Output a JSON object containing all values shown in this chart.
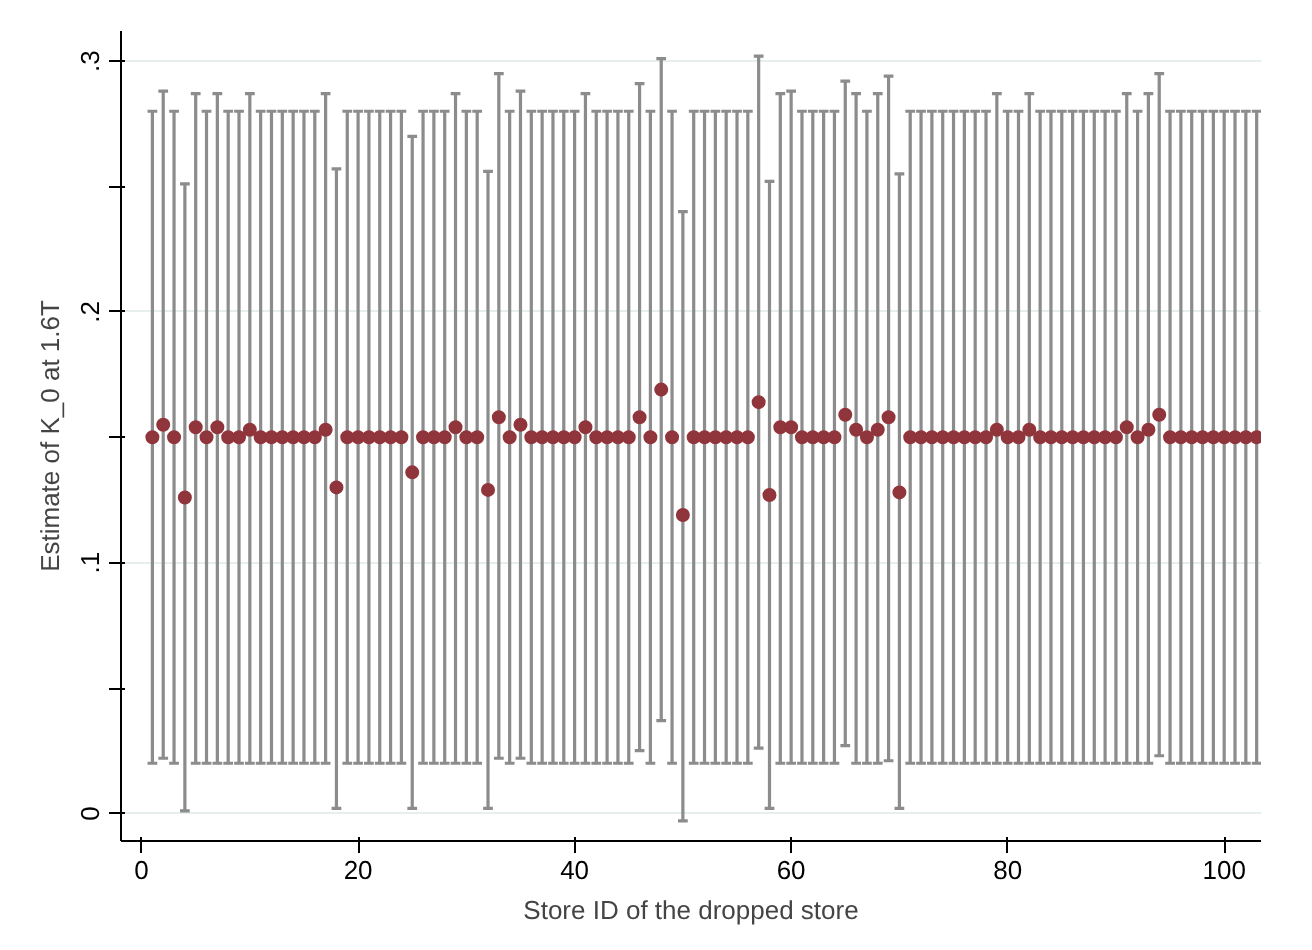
{
  "chart_data": {
    "type": "scatter",
    "xlabel": "Store ID of the dropped store",
    "ylabel": "Estimate of K_0 at 1.6T",
    "x": [
      1,
      2,
      3,
      4,
      5,
      6,
      7,
      8,
      9,
      10,
      11,
      12,
      13,
      14,
      15,
      16,
      17,
      18,
      19,
      20,
      21,
      22,
      23,
      24,
      25,
      26,
      27,
      28,
      29,
      30,
      31,
      32,
      33,
      34,
      35,
      36,
      37,
      38,
      39,
      40,
      41,
      42,
      43,
      44,
      45,
      46,
      47,
      48,
      49,
      50,
      51,
      52,
      53,
      54,
      55,
      56,
      57,
      58,
      59,
      60,
      61,
      62,
      63,
      64,
      65,
      66,
      67,
      68,
      69,
      70,
      71,
      72,
      73,
      74,
      75,
      76,
      77,
      78,
      79,
      80,
      81,
      82,
      83,
      84,
      85,
      86,
      87,
      88,
      89,
      90,
      91,
      92,
      93,
      94,
      95,
      96,
      97,
      98,
      99,
      100,
      101,
      102,
      103
    ],
    "series": [
      {
        "color": "#90353b",
        "values": [
          0.15,
          0.155,
          0.15,
          0.126,
          0.154,
          0.15,
          0.154,
          0.15,
          0.15,
          0.153,
          0.15,
          0.15,
          0.15,
          0.15,
          0.15,
          0.15,
          0.153,
          0.13,
          0.15,
          0.15,
          0.15,
          0.15,
          0.15,
          0.15,
          0.136,
          0.15,
          0.15,
          0.15,
          0.154,
          0.15,
          0.15,
          0.129,
          0.158,
          0.15,
          0.155,
          0.15,
          0.15,
          0.15,
          0.15,
          0.15,
          0.154,
          0.15,
          0.15,
          0.15,
          0.15,
          0.158,
          0.15,
          0.169,
          0.15,
          0.119,
          0.15,
          0.15,
          0.15,
          0.15,
          0.15,
          0.15,
          0.164,
          0.127,
          0.154,
          0.154,
          0.15,
          0.15,
          0.15,
          0.15,
          0.159,
          0.153,
          0.15,
          0.153,
          0.158,
          0.128,
          0.15,
          0.15,
          0.15,
          0.15,
          0.15,
          0.15,
          0.15,
          0.15,
          0.153,
          0.15,
          0.15,
          0.153,
          0.15,
          0.15,
          0.15,
          0.15,
          0.15,
          0.15,
          0.15,
          0.15,
          0.154,
          0.15,
          0.153,
          0.159,
          0.15,
          0.15,
          0.15,
          0.15,
          0.15,
          0.15,
          0.15,
          0.15,
          0.15
        ],
        "errors": [
          [
            0.02,
            0.28
          ],
          [
            0.022,
            0.288
          ],
          [
            0.02,
            0.28
          ],
          [
            0.001,
            0.251
          ],
          [
            0.02,
            0.287
          ],
          [
            0.02,
            0.28
          ],
          [
            0.02,
            0.287
          ],
          [
            0.02,
            0.28
          ],
          [
            0.02,
            0.28
          ],
          [
            0.02,
            0.287
          ],
          [
            0.02,
            0.28
          ],
          [
            0.02,
            0.28
          ],
          [
            0.02,
            0.28
          ],
          [
            0.02,
            0.28
          ],
          [
            0.02,
            0.28
          ],
          [
            0.02,
            0.28
          ],
          [
            0.02,
            0.287
          ],
          [
            0.002,
            0.257
          ],
          [
            0.02,
            0.28
          ],
          [
            0.02,
            0.28
          ],
          [
            0.02,
            0.28
          ],
          [
            0.02,
            0.28
          ],
          [
            0.02,
            0.28
          ],
          [
            0.02,
            0.28
          ],
          [
            0.002,
            0.27
          ],
          [
            0.02,
            0.28
          ],
          [
            0.02,
            0.28
          ],
          [
            0.02,
            0.28
          ],
          [
            0.02,
            0.287
          ],
          [
            0.02,
            0.28
          ],
          [
            0.02,
            0.28
          ],
          [
            0.002,
            0.256
          ],
          [
            0.022,
            0.295
          ],
          [
            0.02,
            0.28
          ],
          [
            0.022,
            0.288
          ],
          [
            0.02,
            0.28
          ],
          [
            0.02,
            0.28
          ],
          [
            0.02,
            0.28
          ],
          [
            0.02,
            0.28
          ],
          [
            0.02,
            0.28
          ],
          [
            0.02,
            0.287
          ],
          [
            0.02,
            0.28
          ],
          [
            0.02,
            0.28
          ],
          [
            0.02,
            0.28
          ],
          [
            0.02,
            0.28
          ],
          [
            0.025,
            0.291
          ],
          [
            0.02,
            0.28
          ],
          [
            0.037,
            0.301
          ],
          [
            0.02,
            0.28
          ],
          [
            -0.003,
            0.24
          ],
          [
            0.02,
            0.28
          ],
          [
            0.02,
            0.28
          ],
          [
            0.02,
            0.28
          ],
          [
            0.02,
            0.28
          ],
          [
            0.02,
            0.28
          ],
          [
            0.02,
            0.28
          ],
          [
            0.026,
            0.302
          ],
          [
            0.002,
            0.252
          ],
          [
            0.02,
            0.287
          ],
          [
            0.02,
            0.288
          ],
          [
            0.02,
            0.28
          ],
          [
            0.02,
            0.28
          ],
          [
            0.02,
            0.28
          ],
          [
            0.02,
            0.28
          ],
          [
            0.027,
            0.292
          ],
          [
            0.02,
            0.287
          ],
          [
            0.02,
            0.28
          ],
          [
            0.02,
            0.287
          ],
          [
            0.021,
            0.294
          ],
          [
            0.002,
            0.255
          ],
          [
            0.02,
            0.28
          ],
          [
            0.02,
            0.28
          ],
          [
            0.02,
            0.28
          ],
          [
            0.02,
            0.28
          ],
          [
            0.02,
            0.28
          ],
          [
            0.02,
            0.28
          ],
          [
            0.02,
            0.28
          ],
          [
            0.02,
            0.28
          ],
          [
            0.02,
            0.287
          ],
          [
            0.02,
            0.28
          ],
          [
            0.02,
            0.28
          ],
          [
            0.02,
            0.287
          ],
          [
            0.02,
            0.28
          ],
          [
            0.02,
            0.28
          ],
          [
            0.02,
            0.28
          ],
          [
            0.02,
            0.28
          ],
          [
            0.02,
            0.28
          ],
          [
            0.02,
            0.28
          ],
          [
            0.02,
            0.28
          ],
          [
            0.02,
            0.28
          ],
          [
            0.02,
            0.287
          ],
          [
            0.02,
            0.28
          ],
          [
            0.02,
            0.287
          ],
          [
            0.023,
            0.295
          ],
          [
            0.02,
            0.28
          ],
          [
            0.02,
            0.28
          ],
          [
            0.02,
            0.28
          ],
          [
            0.02,
            0.28
          ],
          [
            0.02,
            0.28
          ],
          [
            0.02,
            0.28
          ],
          [
            0.02,
            0.28
          ],
          [
            0.02,
            0.28
          ],
          [
            0.02,
            0.28
          ]
        ]
      }
    ],
    "xlim": [
      -1.9,
      103.4
    ],
    "ylim": [
      -0.011,
      0.312
    ],
    "xticks": [
      0,
      20,
      40,
      60,
      80,
      100
    ],
    "yticks": [
      0,
      {
        "value": 0.05,
        "label": null
      },
      {
        "value": 0.1,
        "label": ".1"
      },
      {
        "value": 0.15,
        "label": null
      },
      {
        "value": 0.2,
        "label": ".2"
      },
      {
        "value": 0.25,
        "label": null
      },
      {
        "value": 0.3,
        "label": ".3"
      }
    ],
    "grid": "y",
    "marker": "circle"
  }
}
